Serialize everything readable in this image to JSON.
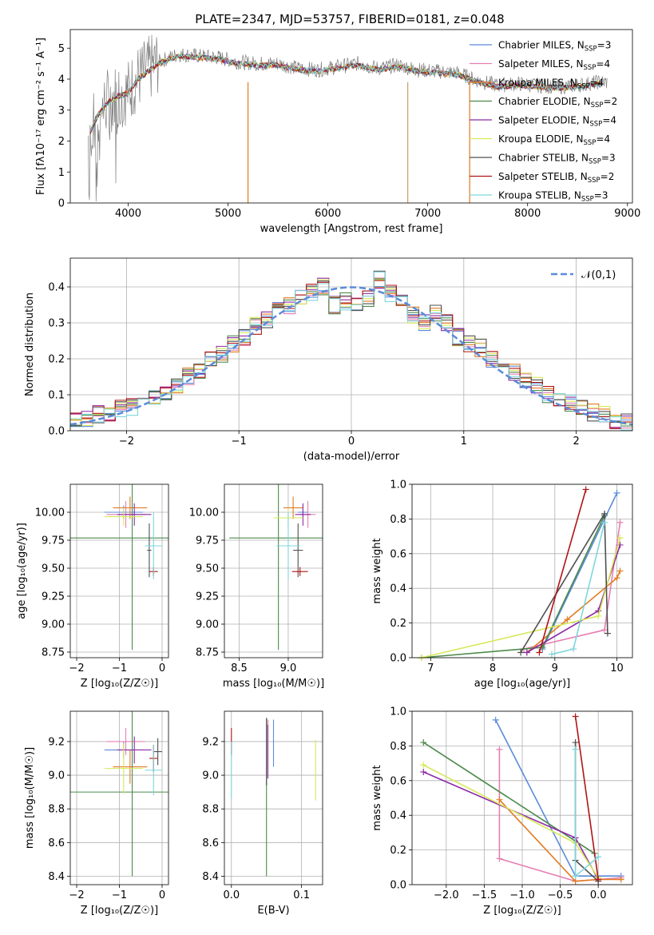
{
  "figure_title": "PLATE=2347, MJD=53757, FIBERID=0181, z=0.048",
  "colors": {
    "Chabrier MILES": "#5b8bd9",
    "Salpeter MILES": "#e67fb3",
    "Kroupa MILES": "#e07b20",
    "Chabrier ELODIE": "#4c8a4c",
    "Salpeter ELODIE": "#8e2ba6",
    "Kroupa ELODIE": "#d7e858",
    "Chabrier STELIB": "#505050",
    "Salpeter STELIB": "#b01414",
    "Kroupa STELIB": "#7fd6dc"
  },
  "chart_data": [
    {
      "type": "line",
      "title": "PLATE=2347, MJD=53757, FIBERID=0181, z=0.048",
      "xlabel": "wavelength [Angstrom, rest frame]",
      "ylabel": "Flux [fλ10⁻¹⁷ erg cm⁻² s⁻¹ A⁻¹]",
      "xlim": [
        3420,
        9050
      ],
      "ylim": [
        0,
        5.6
      ],
      "xticks": [
        4000,
        5000,
        6000,
        7000,
        8000,
        9000
      ],
      "yticks": [
        0,
        1,
        2,
        3,
        4,
        5
      ],
      "grid": false,
      "legend_position": "right",
      "legend": [
        {
          "name": "Chabrier MILES",
          "nssp": "3"
        },
        {
          "name": "Salpeter MILES",
          "nssp": "4"
        },
        {
          "name": "Kroupa MILES",
          "nssp": "4"
        },
        {
          "name": "Chabrier ELODIE",
          "nssp": "2"
        },
        {
          "name": "Salpeter ELODIE",
          "nssp": "4"
        },
        {
          "name": "Kroupa ELODIE",
          "nssp": "4"
        },
        {
          "name": "Chabrier STELIB",
          "nssp": "3"
        },
        {
          "name": "Salpeter STELIB",
          "nssp": "2"
        },
        {
          "name": "Kroupa STELIB",
          "nssp": "3"
        }
      ],
      "data_envelope": {
        "x": [
          3600,
          3700,
          3800,
          3900,
          4000,
          4100,
          4200,
          4300,
          4500,
          4700,
          4900,
          5100,
          5300,
          5500,
          5700,
          5900,
          6100,
          6300,
          6500,
          6700,
          6900,
          7100,
          7300,
          7500,
          7700,
          7900,
          8100,
          8300,
          8500,
          8700
        ],
        "y": [
          2.2,
          2.9,
          3.3,
          3.5,
          3.6,
          4.05,
          4.3,
          4.55,
          4.8,
          4.75,
          4.7,
          4.55,
          4.5,
          4.5,
          4.35,
          4.3,
          4.4,
          4.5,
          4.35,
          4.45,
          4.3,
          4.25,
          4.2,
          3.95,
          3.8,
          3.85,
          3.8,
          3.75,
          3.8,
          3.9
        ]
      }
    },
    {
      "type": "bar",
      "xlabel": "(data-model)/error",
      "ylabel": "Normed distribution",
      "xlim": [
        -2.5,
        2.5
      ],
      "ylim": [
        0,
        0.48
      ],
      "xticks": [
        -2,
        -1,
        0,
        1,
        2
      ],
      "yticks": [
        0.0,
        0.1,
        0.2,
        0.3,
        0.4
      ],
      "grid": true,
      "legend_position": "top-right",
      "reference": {
        "name": "𝒩(0,1)",
        "mean": 0,
        "sigma": 1
      },
      "bin_width": 0.1,
      "bin_centers": [
        -2.45,
        -2.35,
        -2.25,
        -2.15,
        -2.05,
        -1.95,
        -1.85,
        -1.75,
        -1.65,
        -1.55,
        -1.45,
        -1.35,
        -1.25,
        -1.15,
        -1.05,
        -0.95,
        -0.85,
        -0.75,
        -0.65,
        -0.55,
        -0.45,
        -0.35,
        -0.25,
        -0.15,
        -0.05,
        0.05,
        0.15,
        0.25,
        0.35,
        0.45,
        0.55,
        0.65,
        0.75,
        0.85,
        0.95,
        1.05,
        1.15,
        1.25,
        1.35,
        1.45,
        1.55,
        1.65,
        1.75,
        1.85,
        1.95,
        2.05,
        2.15,
        2.25,
        2.35,
        2.45
      ],
      "representative_values": [
        0.025,
        0.03,
        0.045,
        0.05,
        0.06,
        0.065,
        0.075,
        0.09,
        0.11,
        0.125,
        0.15,
        0.17,
        0.2,
        0.21,
        0.24,
        0.26,
        0.29,
        0.31,
        0.335,
        0.35,
        0.375,
        0.385,
        0.4,
        0.35,
        0.36,
        0.35,
        0.365,
        0.42,
        0.38,
        0.36,
        0.32,
        0.3,
        0.33,
        0.3,
        0.26,
        0.24,
        0.23,
        0.2,
        0.18,
        0.16,
        0.14,
        0.125,
        0.1,
        0.09,
        0.075,
        0.06,
        0.05,
        0.045,
        0.03,
        0.025
      ]
    },
    {
      "type": "scatter",
      "xlabel": "Z [log₁₀(Z/Z☉)]",
      "ylabel": "age  [log₁₀(age/yr)]",
      "xlim": [
        -2.15,
        0.15
      ],
      "ylim": [
        8.7,
        10.25
      ],
      "xticks": [
        -2,
        -1,
        0
      ],
      "yticks": [
        8.75,
        9.0,
        9.25,
        9.5,
        9.75,
        10.0
      ],
      "grid": true,
      "points": [
        {
          "model": "Chabrier MILES",
          "x": -0.9,
          "xerr": 0.45,
          "y": 10.0,
          "yerr": 0.06
        },
        {
          "model": "Salpeter MILES",
          "x": -0.85,
          "xerr": 0.45,
          "y": 9.98,
          "yerr": 0.12
        },
        {
          "model": "Kroupa MILES",
          "x": -0.75,
          "xerr": 0.4,
          "y": 10.04,
          "yerr": 0.1
        },
        {
          "model": "Chabrier ELODIE",
          "x": -0.7,
          "xerr": 1.45,
          "y": 9.77,
          "yerr": 1.0
        },
        {
          "model": "Salpeter ELODIE",
          "x": -0.65,
          "xerr": 0.4,
          "y": 9.98,
          "yerr": 0.1
        },
        {
          "model": "Kroupa ELODIE",
          "x": -0.9,
          "xerr": 0.45,
          "y": 9.96,
          "yerr": 0.08
        },
        {
          "model": "Chabrier STELIB",
          "x": -0.3,
          "xerr": 0.05,
          "y": 9.66,
          "yerr": 0.24
        },
        {
          "model": "Salpeter STELIB",
          "x": -0.2,
          "xerr": 0.1,
          "y": 9.47,
          "yerr": 0.04
        },
        {
          "model": "Kroupa STELIB",
          "x": -0.2,
          "xerr": 0.2,
          "y": 9.7,
          "yerr": 0.3
        }
      ]
    },
    {
      "type": "scatter",
      "xlabel": "mass [log₁₀(M/M☉)]",
      "ylabel": "",
      "xlim": [
        8.35,
        9.35
      ],
      "ylim": [
        8.7,
        10.25
      ],
      "xticks": [
        8.5,
        9.0
      ],
      "yticks": [
        8.75,
        9.0,
        9.25,
        9.5,
        9.75,
        10.0
      ],
      "grid": true,
      "points": [
        {
          "model": "Chabrier MILES",
          "x": 9.15,
          "xerr": 0.05,
          "y": 10.0,
          "yerr": 0.06
        },
        {
          "model": "Salpeter MILES",
          "x": 9.2,
          "xerr": 0.08,
          "y": 9.98,
          "yerr": 0.12
        },
        {
          "model": "Kroupa MILES",
          "x": 9.05,
          "xerr": 0.1,
          "y": 10.04,
          "yerr": 0.1
        },
        {
          "model": "Chabrier ELODIE",
          "x": 8.9,
          "xerr": 0.5,
          "y": 9.77,
          "yerr": 1.0
        },
        {
          "model": "Salpeter ELODIE",
          "x": 9.15,
          "xerr": 0.08,
          "y": 9.98,
          "yerr": 0.1
        },
        {
          "model": "Kroupa ELODIE",
          "x": 9.0,
          "xerr": 0.15,
          "y": 9.95,
          "yerr": 0.08
        },
        {
          "model": "Chabrier STELIB",
          "x": 9.1,
          "xerr": 0.05,
          "y": 9.66,
          "yerr": 0.24
        },
        {
          "model": "Salpeter STELIB",
          "x": 9.12,
          "xerr": 0.08,
          "y": 9.47,
          "yerr": 0.04
        },
        {
          "model": "Kroupa STELIB",
          "x": 9.0,
          "xerr": 0.12,
          "y": 9.7,
          "yerr": 0.3
        }
      ]
    },
    {
      "type": "line",
      "xlabel": "age  [log₁₀(age/yr)]",
      "ylabel": "mass weight",
      "xlim": [
        6.7,
        10.25
      ],
      "ylim": [
        0,
        1.0
      ],
      "xticks": [
        7,
        8,
        9,
        10
      ],
      "yticks": [
        0.0,
        0.2,
        0.4,
        0.6,
        0.8,
        1.0
      ],
      "grid": true,
      "series": [
        {
          "name": "Chabrier MILES",
          "x": [
            8.8,
            10.0
          ],
          "y": [
            0.05,
            0.95
          ]
        },
        {
          "name": "Salpeter MILES",
          "x": [
            8.5,
            9.8,
            10.05
          ],
          "y": [
            0.05,
            0.16,
            0.78
          ]
        },
        {
          "name": "Kroupa MILES",
          "x": [
            8.55,
            9.2,
            10.0,
            10.05
          ],
          "y": [
            0.03,
            0.22,
            0.46,
            0.5
          ]
        },
        {
          "name": "Chabrier ELODIE",
          "x": [
            6.85,
            8.8,
            9.8
          ],
          "y": [
            0.0,
            0.06,
            0.82
          ]
        },
        {
          "name": "Salpeter ELODIE",
          "x": [
            8.55,
            9.7,
            10.05
          ],
          "y": [
            0.03,
            0.27,
            0.65
          ]
        },
        {
          "name": "Kroupa ELODIE",
          "x": [
            6.85,
            9.7,
            10.05
          ],
          "y": [
            0.0,
            0.24,
            0.69
          ]
        },
        {
          "name": "Chabrier STELIB",
          "x": [
            8.45,
            9.8,
            9.85
          ],
          "y": [
            0.03,
            0.83,
            0.14
          ]
        },
        {
          "name": "Salpeter STELIB",
          "x": [
            8.75,
            9.5
          ],
          "y": [
            0.03,
            0.97
          ]
        },
        {
          "name": "Kroupa STELIB",
          "x": [
            8.95,
            9.3,
            9.8
          ],
          "y": [
            0.02,
            0.05,
            0.78
          ]
        }
      ]
    },
    {
      "type": "scatter",
      "xlabel": "Z [log₁₀(Z/Z☉)]",
      "ylabel": "mass [log₁₀(M/M☉)]",
      "xlim": [
        -2.15,
        0.15
      ],
      "ylim": [
        8.35,
        9.38
      ],
      "xticks": [
        -2,
        -1,
        0
      ],
      "yticks": [
        8.4,
        8.6,
        8.8,
        9.0,
        9.2
      ],
      "grid": true,
      "points": [
        {
          "model": "Chabrier MILES",
          "x": -0.9,
          "xerr": 0.45,
          "y": 9.15,
          "yerr": 0.05
        },
        {
          "model": "Salpeter MILES",
          "x": -0.85,
          "xerr": 0.45,
          "y": 9.2,
          "yerr": 0.08
        },
        {
          "model": "Kroupa MILES",
          "x": -0.75,
          "xerr": 0.4,
          "y": 9.05,
          "yerr": 0.1
        },
        {
          "model": "Chabrier ELODIE",
          "x": -0.7,
          "xerr": 1.45,
          "y": 8.9,
          "yerr": 0.5
        },
        {
          "model": "Salpeter ELODIE",
          "x": -0.65,
          "xerr": 0.4,
          "y": 9.15,
          "yerr": 0.08
        },
        {
          "model": "Kroupa ELODIE",
          "x": -0.9,
          "xerr": 0.45,
          "y": 9.04,
          "yerr": 0.15
        },
        {
          "model": "Chabrier STELIB",
          "x": -0.1,
          "xerr": 0.1,
          "y": 9.14,
          "yerr": 0.08
        },
        {
          "model": "Salpeter STELIB",
          "x": -0.2,
          "xerr": 0.1,
          "y": 9.1,
          "yerr": 0.08
        },
        {
          "model": "Kroupa STELIB",
          "x": -0.2,
          "xerr": 0.2,
          "y": 9.03,
          "yerr": 0.15
        }
      ]
    },
    {
      "type": "scatter",
      "xlabel": "E(B-V)",
      "ylabel": "",
      "xlim": [
        -0.01,
        0.13
      ],
      "ylim": [
        8.35,
        9.38
      ],
      "xticks": [
        0.0,
        0.1
      ],
      "yticks": [
        8.4,
        8.6,
        8.8,
        9.0,
        9.2
      ],
      "grid": true,
      "points": [
        {
          "model": "Chabrier MILES",
          "x": 0.06,
          "xerr": 0,
          "y": 9.19,
          "yerr": 0.14
        },
        {
          "model": "Salpeter MILES",
          "x": 0.052,
          "xerr": 0,
          "y": 9.18,
          "yerr": 0.15
        },
        {
          "model": "Kroupa MILES",
          "x": 0.05,
          "xerr": 0,
          "y": 9.15,
          "yerr": 0.15
        },
        {
          "model": "Chabrier ELODIE",
          "x": 0.05,
          "xerr": 0,
          "y": 8.87,
          "yerr": 0.47
        },
        {
          "model": "Salpeter ELODIE",
          "x": 0.052,
          "xerr": 0,
          "y": 9.14,
          "yerr": 0.16
        },
        {
          "model": "Kroupa ELODIE",
          "x": 0.12,
          "xerr": 0,
          "y": 9.03,
          "yerr": 0.18
        },
        {
          "model": "Chabrier STELIB",
          "x": 0.05,
          "xerr": 0,
          "y": 9.14,
          "yerr": 0.2
        },
        {
          "model": "Salpeter STELIB",
          "x": 0.0,
          "xerr": 0,
          "y": 9.2,
          "yerr": 0.08
        },
        {
          "model": "Kroupa STELIB",
          "x": 0.0,
          "xerr": 0,
          "y": 9.03,
          "yerr": 0.17
        }
      ]
    },
    {
      "type": "line",
      "xlabel": "Z [log₁₀(Z/Z☉)]",
      "ylabel": "mass weight",
      "xlim": [
        -2.45,
        0.45
      ],
      "ylim": [
        0,
        1.0
      ],
      "xticks": [
        -2.0,
        -1.5,
        -1.0,
        -0.5,
        0.0
      ],
      "yticks": [
        0.0,
        0.2,
        0.4,
        0.6,
        0.8,
        1.0
      ],
      "grid": true,
      "series": [
        {
          "name": "Chabrier MILES",
          "x": [
            -1.35,
            -0.3,
            0.3
          ],
          "y": [
            0.95,
            0.05,
            0.05
          ]
        },
        {
          "name": "Salpeter MILES",
          "x": [
            -1.3,
            -1.3,
            -0.3,
            0.3
          ],
          "y": [
            0.78,
            0.15,
            0.02,
            0.04
          ]
        },
        {
          "name": "Kroupa MILES",
          "x": [
            -1.3,
            -0.3,
            0.0,
            0.3
          ],
          "y": [
            0.49,
            0.02,
            0.03,
            0.03
          ]
        },
        {
          "name": "Chabrier ELODIE",
          "x": [
            -2.3,
            -0.05
          ],
          "y": [
            0.82,
            0.18
          ]
        },
        {
          "name": "Salpeter ELODIE",
          "x": [
            -2.3,
            -0.3,
            0.0
          ],
          "y": [
            0.65,
            0.27,
            0.03
          ]
        },
        {
          "name": "Kroupa ELODIE",
          "x": [
            -2.3,
            -0.3,
            0.0
          ],
          "y": [
            0.69,
            0.24,
            0.04
          ]
        },
        {
          "name": "Chabrier STELIB",
          "x": [
            -0.3,
            -0.3,
            0.0
          ],
          "y": [
            0.82,
            0.14,
            0.02
          ]
        },
        {
          "name": "Salpeter STELIB",
          "x": [
            -0.3,
            0.0
          ],
          "y": [
            0.97,
            0.03
          ]
        },
        {
          "name": "Kroupa STELIB",
          "x": [
            -0.3,
            -0.3,
            0.0
          ],
          "y": [
            0.78,
            0.05,
            0.16
          ]
        }
      ]
    }
  ]
}
